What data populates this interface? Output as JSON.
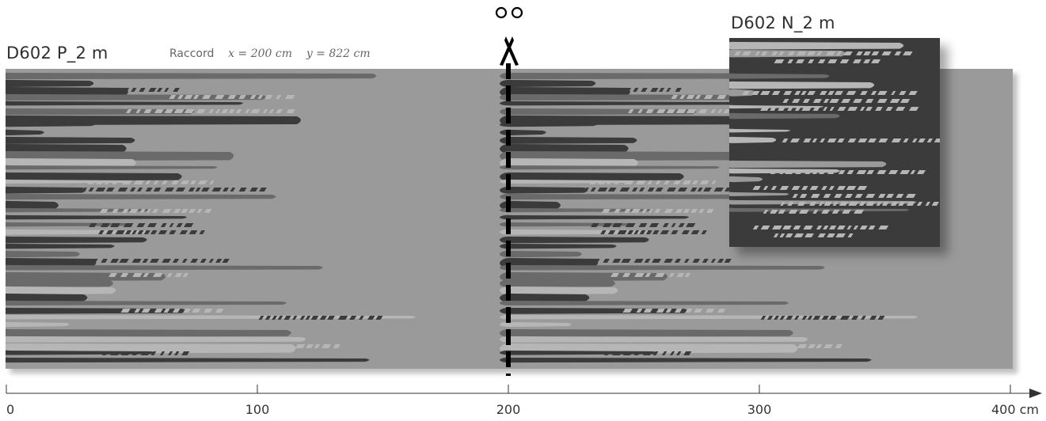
{
  "header": {
    "top_title": "—",
    "pattern_title": "D602 P_2 m",
    "swatch_title": "D602 N_2 m",
    "raccord_label": "Raccord",
    "raccord_x": "x = 200 cm",
    "raccord_y": "y = 822 cm"
  },
  "colors": {
    "background": "#9a9a9a",
    "dark": "#3b3b3b",
    "mid": "#6a6a6a",
    "light": "#b6b6b6",
    "cut_line": "#000000"
  },
  "icons": {
    "cut_marker": "scissors-icon"
  },
  "ruler": {
    "unit": "cm",
    "ticks": [
      {
        "label": "0"
      },
      {
        "label": "100"
      },
      {
        "label": "200"
      },
      {
        "label": "300"
      },
      {
        "label": "400 cm"
      }
    ]
  }
}
